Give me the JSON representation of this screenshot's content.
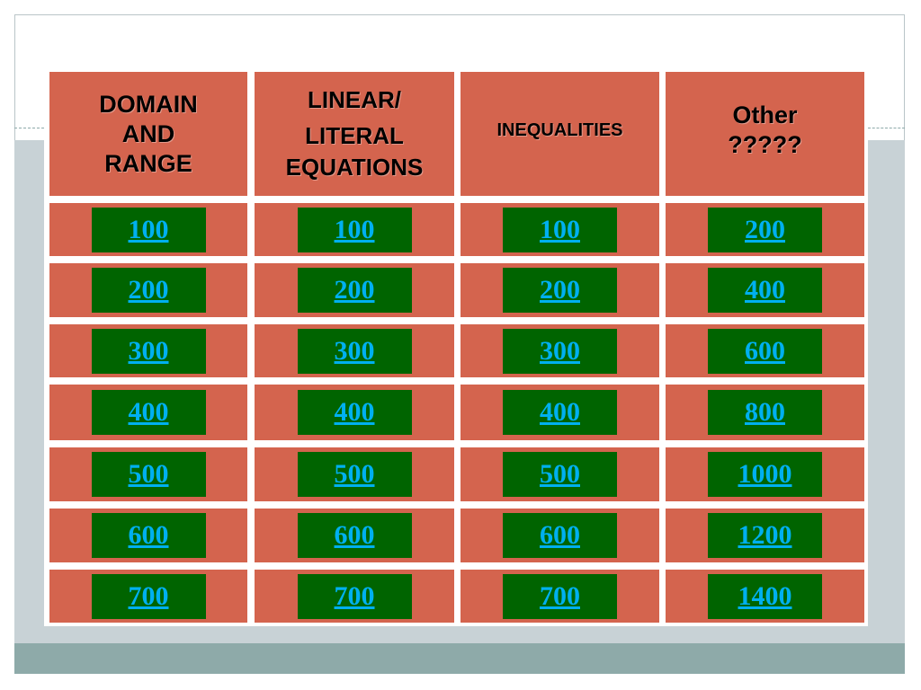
{
  "categories": [
    {
      "title_lines": [
        "DOMAIN",
        "AND",
        "RANGE"
      ],
      "values": [
        "100",
        "200",
        "300",
        "400",
        "500",
        "600",
        "700"
      ]
    },
    {
      "title_lines": [
        "LINEAR/",
        "LITERAL",
        "EQUATIONS"
      ],
      "values": [
        "100",
        "200",
        "300",
        "400",
        "500",
        "600",
        "700"
      ]
    },
    {
      "title_lines": [
        "INEQUALITIES"
      ],
      "values": [
        "100",
        "200",
        "300",
        "400",
        "500",
        "600",
        "700"
      ]
    },
    {
      "title_lines": [
        "Other",
        "?????"
      ],
      "values": [
        "200",
        "400",
        "600",
        "800",
        "1000",
        "1200",
        "1400"
      ]
    }
  ],
  "colors": {
    "cell_background": "#d4644e",
    "button_background": "#006400",
    "button_text": "#00b0f0",
    "header_text": "#000000"
  }
}
